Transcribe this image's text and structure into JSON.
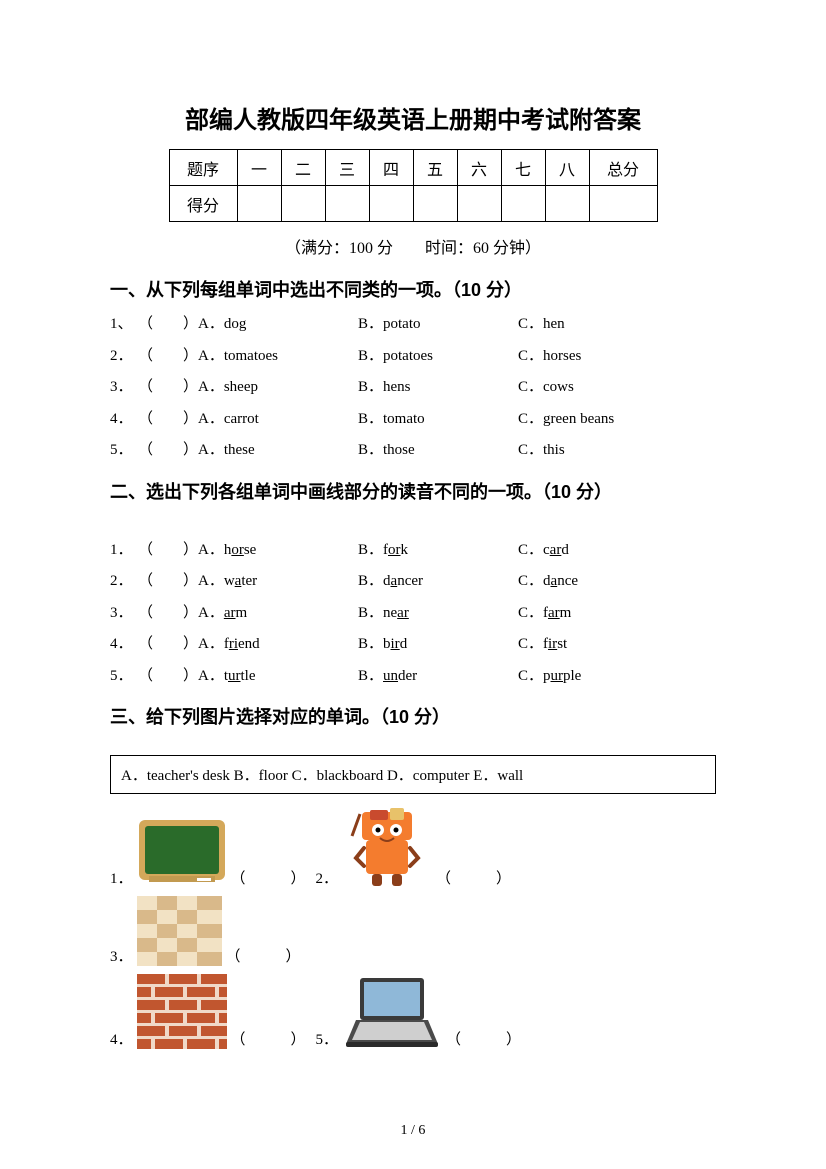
{
  "title": "部编人教版四年级英语上册期中考试附答案",
  "scoreTable": {
    "row1Label": "题序",
    "cols": [
      "一",
      "二",
      "三",
      "四",
      "五",
      "六",
      "七",
      "八"
    ],
    "totalLabel": "总分",
    "row2Label": "得分"
  },
  "subinfo": "（满分：100 分　　时间：60 分钟）",
  "section1": {
    "heading": "一、从下列每组单词中选出不同类的一项。（10 分）",
    "rows": [
      {
        "n": "1、",
        "a": "A．dog",
        "b": "B．potato",
        "c": "C．hen"
      },
      {
        "n": "2．",
        "a": "A．tomatoes",
        "b": "B．potatoes",
        "c": "C．horses"
      },
      {
        "n": "3．",
        "a": "A．sheep",
        "b": "B．hens",
        "c": "C．cows"
      },
      {
        "n": "4．",
        "a": "A．carrot",
        "b": "B．tomato",
        "c": "C．green beans"
      },
      {
        "n": "5．",
        "a": "A．these",
        "b": "B．those",
        "c": "C．this"
      }
    ]
  },
  "section2": {
    "heading": "二、选出下列各组单词中画线部分的读音不同的一项。（10 分）",
    "rows": [
      {
        "n": "1．",
        "a": {
          "pre": "A．h",
          "u": "or",
          "post": "se"
        },
        "b": {
          "pre": "B．f",
          "u": "or",
          "post": "k"
        },
        "c": {
          "pre": "C．c",
          "u": "ar",
          "post": "d"
        }
      },
      {
        "n": "2．",
        "a": {
          "pre": "A．w",
          "u": "a",
          "post": "ter"
        },
        "b": {
          "pre": "B．d",
          "u": "a",
          "post": "ncer"
        },
        "c": {
          "pre": "C．d",
          "u": "a",
          "post": "nce"
        }
      },
      {
        "n": "3．",
        "a": {
          "pre": "A．",
          "u": "ar",
          "post": "m"
        },
        "b": {
          "pre": "B．ne",
          "u": "ar",
          "post": ""
        },
        "c": {
          "pre": "C．f",
          "u": "ar",
          "post": "m"
        }
      },
      {
        "n": "4．",
        "a": {
          "pre": "A．f",
          "u": "ri",
          "post": "end"
        },
        "b": {
          "pre": "B．b",
          "u": "ir",
          "post": "d"
        },
        "c": {
          "pre": "C．f",
          "u": "ir",
          "post": "st"
        }
      },
      {
        "n": "5．",
        "a": {
          "pre": "A．t",
          "u": "ur",
          "post": "tle"
        },
        "b": {
          "pre": "B．",
          "u": "un",
          "post": "der"
        },
        "c": {
          "pre": "C．p",
          "u": "ur",
          "post": "ple"
        }
      }
    ]
  },
  "section3": {
    "heading": "三、给下列图片选择对应的单词。（10 分）",
    "optionsBox": "A．teacher's desk   B．floor   C．blackboard   D．computer   E．wall",
    "items": [
      {
        "n": "1．",
        "icon": "blackboard"
      },
      {
        "n": "2．",
        "icon": "desk"
      },
      {
        "n": "3．",
        "icon": "floor"
      },
      {
        "n": "4．",
        "icon": "wall"
      },
      {
        "n": "5．",
        "icon": "computer"
      }
    ]
  },
  "paren": "（　　）",
  "parenWide": "（　　　）",
  "pageNum": "1  /  6",
  "colors": {
    "blackboardFrame": "#d4a85a",
    "blackboardGreen": "#2a6b2a",
    "deskOrange": "#f47c2e",
    "deskDark": "#8b3e1a",
    "floorTan": "#d9b98a",
    "floorLight": "#f2e2c4",
    "wallBrick": "#c1562f",
    "wallMortar": "#f0d9c8",
    "laptopDark": "#3a3a3a",
    "laptopScreen": "#8fb8d8",
    "laptopKeys": "#cfcfcf"
  }
}
